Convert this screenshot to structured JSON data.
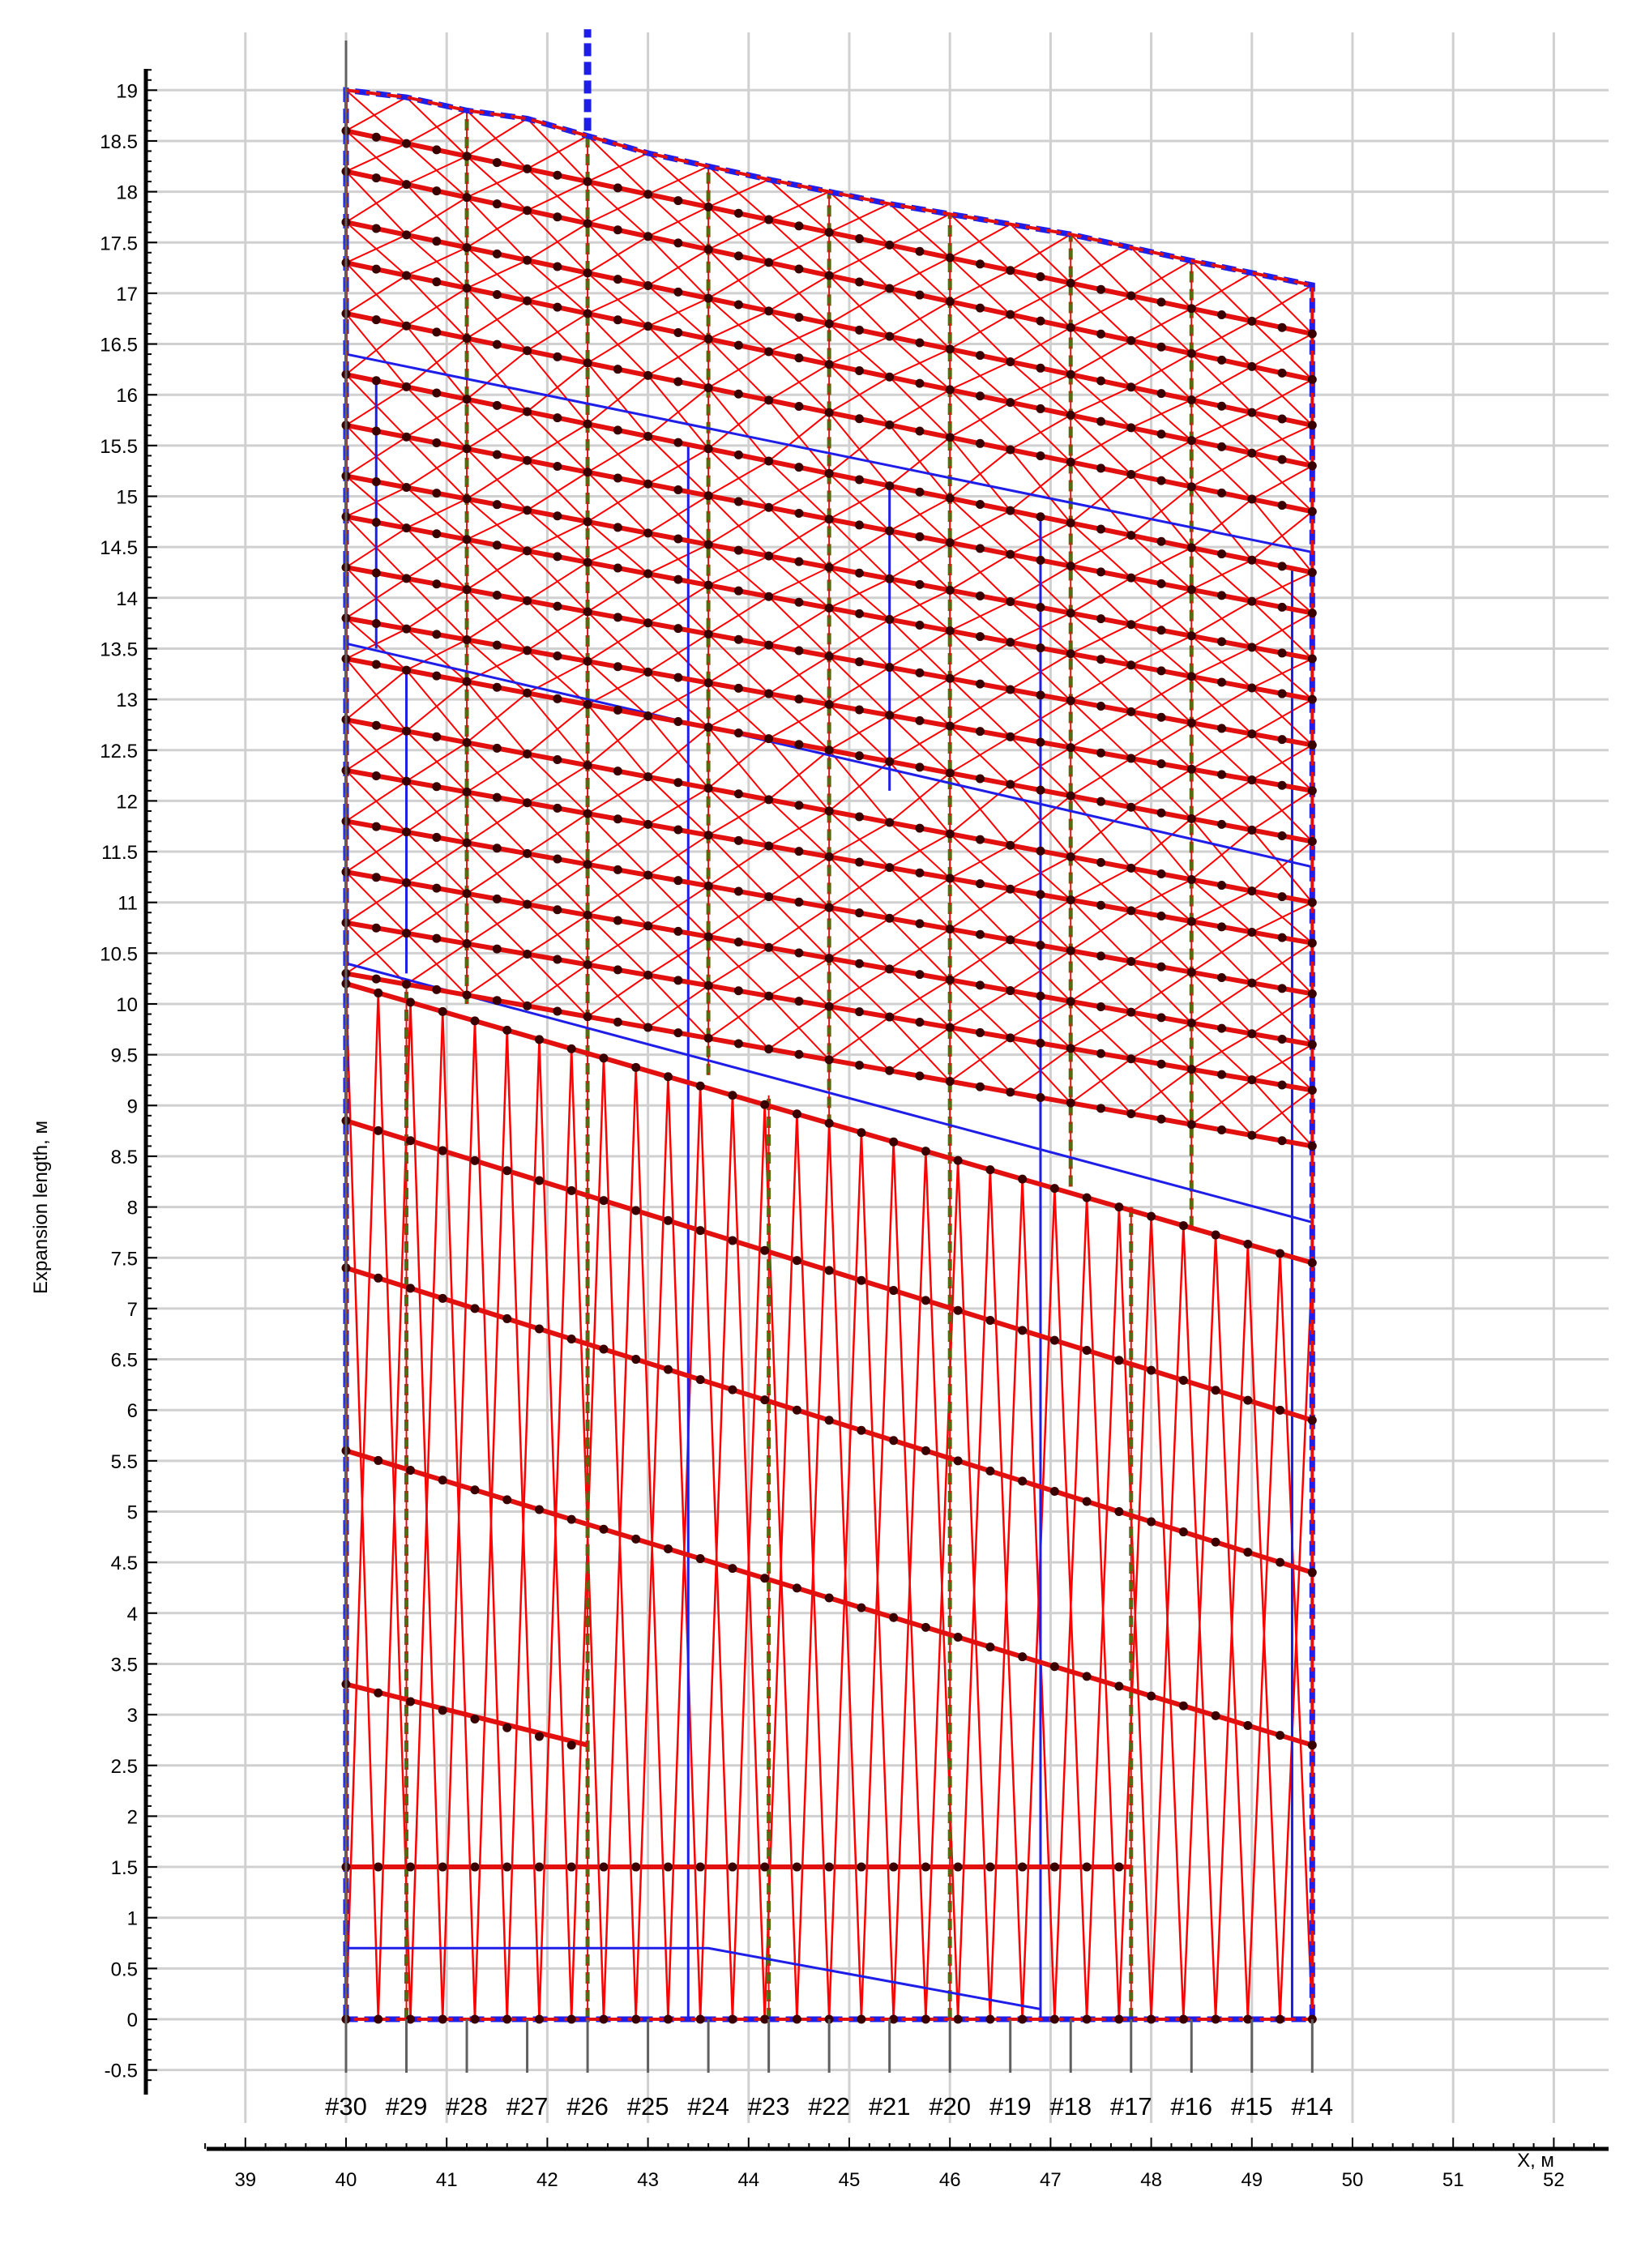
{
  "chart_data": {
    "type": "line",
    "title": "",
    "xlabel": "X, м",
    "ylabel": "Expansion length, м",
    "xlim": [
      38,
      53
    ],
    "ylim": [
      -0.75,
      19.3
    ],
    "x_ticks": [
      "39",
      "40",
      "41",
      "42",
      "43",
      "44",
      "45",
      "46",
      "47",
      "48",
      "49",
      "50",
      "51",
      "52"
    ],
    "y_ticks": [
      "-0.5",
      "0",
      "0.5",
      "1",
      "1.5",
      "2",
      "2.5",
      "3",
      "3.5",
      "4",
      "4.5",
      "5",
      "5.5",
      "6",
      "6.5",
      "7",
      "7.5",
      "8",
      "8.5",
      "9",
      "9.5",
      "10",
      "10.5",
      "11",
      "11.5",
      "12",
      "12.5",
      "13",
      "13.5",
      "14",
      "14.5",
      "15",
      "15.5",
      "16",
      "16.5",
      "17",
      "17.5",
      "18",
      "18.5",
      "19"
    ],
    "grid": true,
    "frames": [
      {
        "label": "#30",
        "x": 40.0
      },
      {
        "label": "#29",
        "x": 40.6
      },
      {
        "label": "#28",
        "x": 41.2
      },
      {
        "label": "#27",
        "x": 41.8
      },
      {
        "label": "#26",
        "x": 42.4
      },
      {
        "label": "#25",
        "x": 43.0
      },
      {
        "label": "#24",
        "x": 43.6
      },
      {
        "label": "#23",
        "x": 44.2
      },
      {
        "label": "#22",
        "x": 44.8
      },
      {
        "label": "#21",
        "x": 45.4
      },
      {
        "label": "#20",
        "x": 46.0
      },
      {
        "label": "#19",
        "x": 46.6
      },
      {
        "label": "#18",
        "x": 47.2
      },
      {
        "label": "#17",
        "x": 47.8
      },
      {
        "label": "#16",
        "x": 48.4
      },
      {
        "label": "#15",
        "x": 49.0
      },
      {
        "label": "#14",
        "x": 49.6
      }
    ],
    "outline": {
      "x": [
        40.0,
        40.6,
        41.2,
        41.8,
        42.4,
        43.0,
        43.6,
        44.2,
        44.8,
        45.4,
        46.0,
        46.6,
        47.2,
        47.8,
        48.4,
        49.0,
        49.6
      ],
      "top": [
        19.0,
        18.93,
        18.8,
        18.72,
        18.55,
        18.38,
        18.25,
        18.12,
        18.0,
        17.88,
        17.78,
        17.68,
        17.58,
        17.45,
        17.32,
        17.2,
        17.08
      ],
      "bottom": [
        0,
        0,
        0,
        0,
        0,
        0,
        0,
        0,
        0,
        0,
        0,
        0,
        0,
        0,
        0,
        0,
        0
      ]
    },
    "red_seams": [
      {
        "x": [
          40.0,
          49.6
        ],
        "y": [
          18.6,
          16.6
        ]
      },
      {
        "x": [
          40.0,
          49.6
        ],
        "y": [
          18.2,
          16.15
        ]
      },
      {
        "x": [
          40.0,
          49.6
        ],
        "y": [
          17.7,
          15.7
        ]
      },
      {
        "x": [
          40.0,
          49.6
        ],
        "y": [
          17.3,
          15.3
        ]
      },
      {
        "x": [
          40.0,
          49.6
        ],
        "y": [
          16.8,
          14.85
        ]
      },
      {
        "x": [
          40.0,
          49.6
        ],
        "y": [
          16.2,
          14.25
        ]
      },
      {
        "x": [
          40.0,
          49.6
        ],
        "y": [
          15.7,
          13.85
        ]
      },
      {
        "x": [
          40.0,
          49.6
        ],
        "y": [
          15.2,
          13.4
        ]
      },
      {
        "x": [
          40.0,
          49.6
        ],
        "y": [
          14.8,
          13.0
        ]
      },
      {
        "x": [
          40.0,
          49.6
        ],
        "y": [
          14.3,
          12.55
        ]
      },
      {
        "x": [
          40.0,
          49.6
        ],
        "y": [
          13.8,
          12.1
        ]
      },
      {
        "x": [
          40.0,
          49.6
        ],
        "y": [
          13.4,
          11.6
        ]
      },
      {
        "x": [
          40.0,
          49.6
        ],
        "y": [
          12.8,
          11.0
        ]
      },
      {
        "x": [
          40.0,
          49.6
        ],
        "y": [
          12.3,
          10.6
        ]
      },
      {
        "x": [
          40.0,
          49.6
        ],
        "y": [
          11.8,
          10.1
        ]
      },
      {
        "x": [
          40.0,
          49.6
        ],
        "y": [
          11.3,
          9.6
        ]
      },
      {
        "x": [
          40.0,
          49.6
        ],
        "y": [
          10.8,
          9.15
        ]
      },
      {
        "x": [
          40.0,
          49.6
        ],
        "y": [
          10.3,
          8.6
        ]
      },
      {
        "x": [
          40.0,
          49.6
        ],
        "y": [
          10.2,
          7.45
        ]
      },
      {
        "x": [
          40.0,
          49.6
        ],
        "y": [
          8.85,
          5.9
        ]
      },
      {
        "x": [
          40.0,
          49.6
        ],
        "y": [
          7.4,
          4.4
        ]
      },
      {
        "x": [
          40.0,
          49.6
        ],
        "y": [
          5.6,
          2.7
        ]
      },
      {
        "x": [
          40.0,
          42.4
        ],
        "y": [
          3.3,
          2.7
        ]
      },
      {
        "x": [
          40.0,
          47.8
        ],
        "y": [
          1.5,
          1.5
        ]
      }
    ],
    "blue_lines": [
      {
        "x": [
          40.0,
          49.6
        ],
        "y": [
          16.4,
          14.45
        ]
      },
      {
        "x": [
          40.0,
          49.6
        ],
        "y": [
          13.55,
          11.35
        ]
      },
      {
        "x": [
          40.0,
          49.6
        ],
        "y": [
          10.4,
          7.85
        ]
      },
      {
        "x": [
          40.0,
          43.6,
          46.9
        ],
        "y": [
          0.7,
          0.7,
          0.1
        ]
      },
      {
        "x": [
          40.3,
          40.3
        ],
        "y": [
          16.1,
          13.5
        ]
      },
      {
        "x": [
          40.6,
          40.6
        ],
        "y": [
          13.3,
          10.3
        ]
      },
      {
        "x": [
          43.4,
          43.4
        ],
        "y": [
          15.5,
          0
        ]
      },
      {
        "x": [
          45.4,
          45.4
        ],
        "y": [
          15.1,
          12.1
        ]
      },
      {
        "x": [
          46.9,
          46.9
        ],
        "y": [
          14.8,
          0
        ]
      },
      {
        "x": [
          49.4,
          49.4
        ],
        "y": [
          14.3,
          0
        ]
      },
      {
        "x": [
          42.4,
          42.4
        ],
        "y": [
          18.6,
          19.6
        ]
      }
    ],
    "subdivision_lines": [
      {
        "x": 40.6,
        "y": [
          0,
          10.15
        ]
      },
      {
        "x": 41.2,
        "y": [
          10.0,
          18.8
        ]
      },
      {
        "x": 42.4,
        "y": [
          0,
          18.55
        ]
      },
      {
        "x": 43.6,
        "y": [
          9.3,
          18.25
        ]
      },
      {
        "x": 44.2,
        "y": [
          0,
          9.1
        ]
      },
      {
        "x": 44.8,
        "y": [
          8.8,
          18.0
        ]
      },
      {
        "x": 46.0,
        "y": [
          0,
          17.78
        ]
      },
      {
        "x": 47.2,
        "y": [
          8.2,
          17.58
        ]
      },
      {
        "x": 47.8,
        "y": [
          0,
          8.0
        ]
      },
      {
        "x": 48.4,
        "y": [
          7.8,
          17.32
        ]
      }
    ],
    "lower_zone_top_y": 10.2,
    "lower_zone_panels": 30,
    "upper_zone_panels": 16
  },
  "colors": {
    "seam": "#e31010",
    "brace": "#ff0000",
    "blue": "#1e1ee8",
    "frame": "#7a1020",
    "subdivision": "#556b10",
    "node": "#3a0000",
    "grid": "#d0d0d0"
  }
}
